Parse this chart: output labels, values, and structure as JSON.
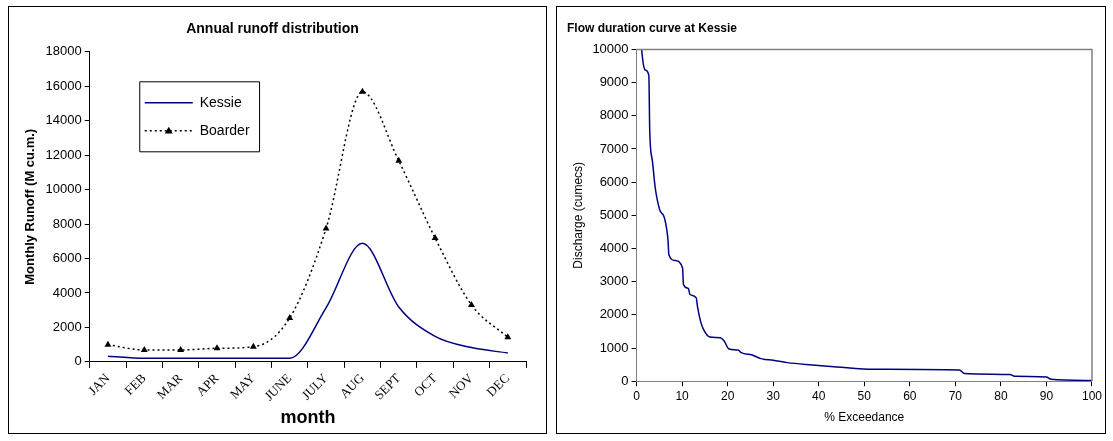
{
  "chart_data": [
    {
      "type": "line",
      "title": "Annual runoff distribution",
      "xlabel": "month",
      "ylabel": "Monthly Runoff (M cu.m.)",
      "categories": [
        "JAN",
        "FEB",
        "MAR",
        "APR",
        "MAY",
        "JUNE",
        "JULY",
        "AUG",
        "SEPT",
        "OCT",
        "NOV",
        "DEC"
      ],
      "series": [
        {
          "name": "Kessie",
          "color": "#000080",
          "marker": "none",
          "line_style": "solid",
          "values": [
            330,
            210,
            210,
            210,
            210,
            210,
            3140,
            6880,
            3190,
            1480,
            830,
            520
          ]
        },
        {
          "name": "Boarder",
          "color": "#000000",
          "marker": "triangle",
          "line_style": "dotted",
          "values": [
            1000,
            690,
            690,
            790,
            880,
            2550,
            7740,
            15680,
            11670,
            7190,
            3310,
            1430
          ]
        }
      ],
      "ylim": [
        0,
        18000
      ],
      "yticks": [
        0,
        2000,
        4000,
        6000,
        8000,
        10000,
        12000,
        14000,
        16000,
        18000
      ],
      "legend": "top left"
    },
    {
      "type": "line",
      "title": "Flow duration curve at Kessie",
      "xlabel": "% Exceedance",
      "ylabel": "Discharge (cumecs)",
      "series": [
        {
          "color": "#000080",
          "x": [
            1.1,
            1.5,
            1.9,
            2.7,
            2.9,
            3.5,
            4.1,
            5.1,
            6.1,
            6.9,
            7.1,
            8.4,
            10.1,
            10.3,
            11.4,
            11.7,
            13.1,
            13.4,
            14.1,
            14.7,
            16.1,
            18.4,
            19.2,
            20.3,
            22.3,
            23.0,
            25.4,
            27.3,
            30.0,
            33.1,
            38.6,
            44.0,
            52.2,
            70.9,
            72.0,
            82.0,
            83.0,
            90.0,
            91.0,
            100.0
          ],
          "values": [
            10000,
            9550,
            9380,
            9210,
            7520,
            6620,
            5830,
            5160,
            4930,
            4260,
            3810,
            3640,
            3410,
            2910,
            2790,
            2620,
            2510,
            2230,
            1780,
            1560,
            1330,
            1310,
            1220,
            970,
            940,
            860,
            790,
            680,
            630,
            560,
            490,
            430,
            360,
            340,
            230,
            200,
            150,
            130,
            60,
            20
          ]
        }
      ],
      "xlim": [
        0,
        100
      ],
      "xticks": [
        0,
        10,
        20,
        30,
        40,
        50,
        60,
        70,
        80,
        90,
        100
      ],
      "ylim": [
        0,
        10000
      ],
      "yticks": [
        0,
        1000,
        2000,
        3000,
        4000,
        5000,
        6000,
        7000,
        8000,
        9000,
        10000
      ]
    }
  ]
}
